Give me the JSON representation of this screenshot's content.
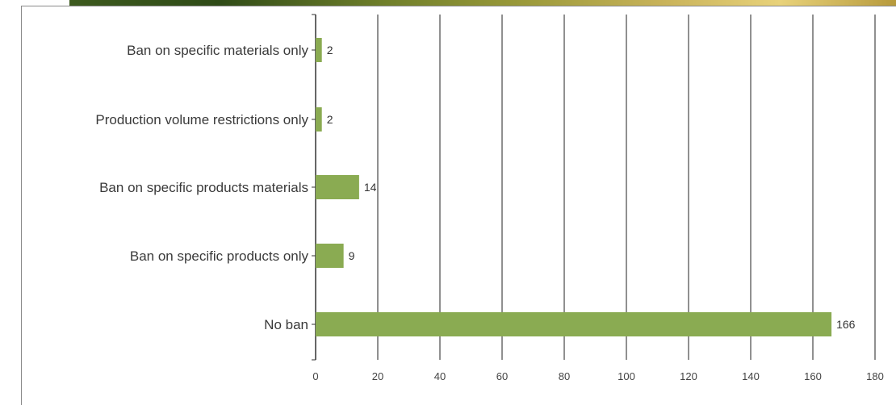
{
  "chart_data": {
    "type": "bar",
    "orientation": "horizontal",
    "categories": [
      "Ban on specific materials only",
      "Production volume restrictions only",
      "Ban on specific products materials",
      "Ban on specific products only",
      "No ban"
    ],
    "values": [
      2,
      2,
      14,
      9,
      166
    ],
    "value_labels": [
      "2",
      "2",
      "14",
      "9",
      "166"
    ],
    "x_ticks": [
      "0",
      "20",
      "40",
      "60",
      "80",
      "100",
      "120",
      "140",
      "160",
      "180"
    ],
    "xlim": [
      0,
      180
    ],
    "grid": "vertical",
    "bar_color": "#8aab52",
    "grid_color": "#555555"
  }
}
